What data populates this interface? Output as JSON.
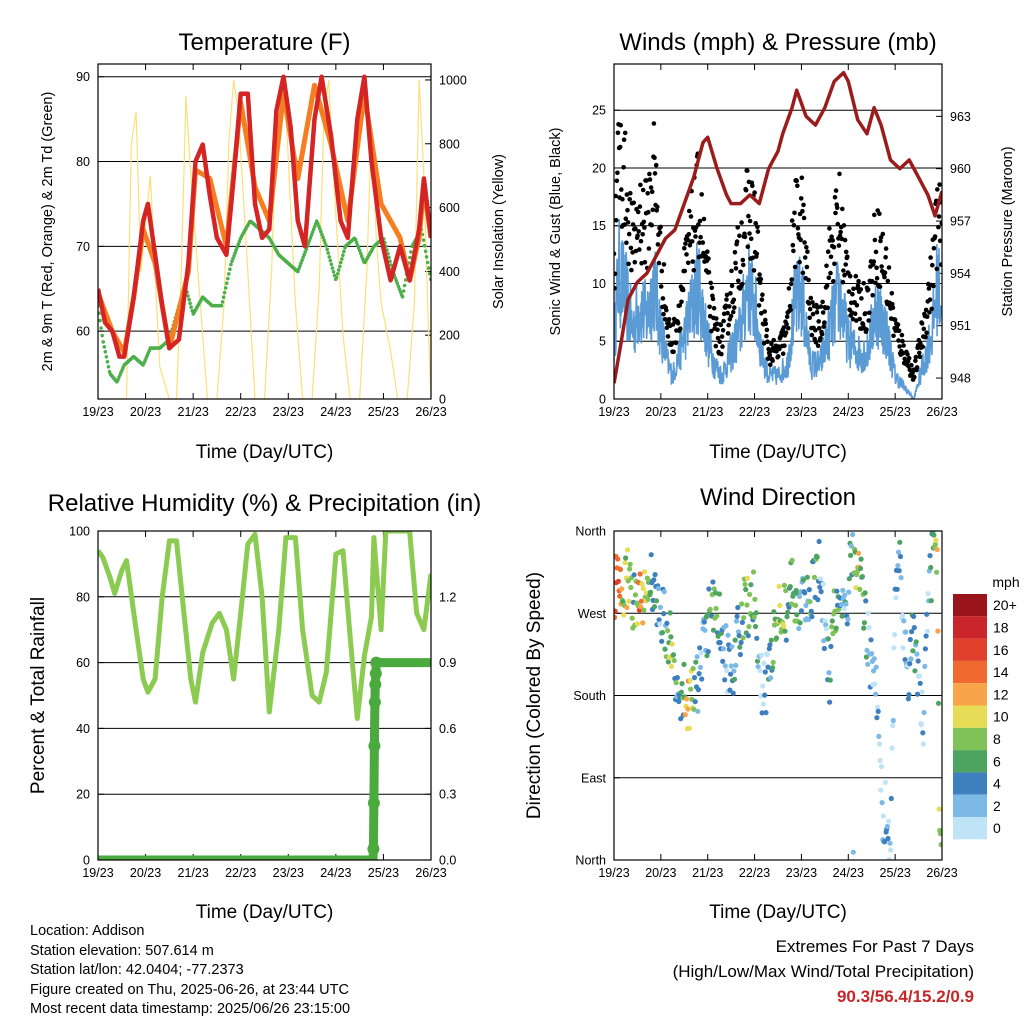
{
  "footer": {
    "location": "Location: Addison",
    "elevation": "Station elevation: 507.614 m",
    "latlon": "Station lat/lon: 42.0404; -77.2373",
    "created": "Figure created on Thu, 2025-06-26, at 23:44 UTC",
    "latest": "Most recent data timestamp: 2025/06/26 23:15:00"
  },
  "extremes": {
    "title": "Extremes For Past 7 Days",
    "subtitle": "(High/Low/Max Wind/Total Precipitation)",
    "values": "90.3/56.4/15.2/0.9"
  },
  "colors": {
    "temp2m": "#d42424",
    "temp9m": "#f57f20",
    "dewpoint": "#4daf4a",
    "solar": "#fbe07a",
    "wind": "#5b9bd5",
    "gust": "#000000",
    "pressure": "#9b1c1c",
    "rh": "#8ccb52",
    "precip": "#4aaa3e"
  },
  "chart_data": [
    {
      "type": "line",
      "title": "Temperature (F)",
      "xlabel": "Time (Day/UTC)",
      "ylabel": "2m & 9m T (Red, Orange) & 2m Td (Green)",
      "y2label": "Solar Insolation (Yellow)",
      "x_ticks": [
        "19/23",
        "20/23",
        "21/23",
        "22/23",
        "23/23",
        "24/23",
        "25/23",
        "26/23"
      ],
      "xlim": [
        0,
        7
      ],
      "ylim": [
        52,
        91.5
      ],
      "y2lim": [
        0,
        1050
      ],
      "yticks": [
        60,
        70,
        80,
        90
      ],
      "y2ticks": [
        0,
        200,
        400,
        600,
        800,
        1000
      ],
      "grid_y": [
        60,
        70,
        80,
        90
      ],
      "series": [
        {
          "name": "2m T",
          "x": [
            0,
            0.15,
            0.3,
            0.45,
            0.55,
            0.75,
            0.95,
            1.05,
            1.2,
            1.35,
            1.5,
            1.7,
            1.9,
            2.05,
            2.2,
            2.35,
            2.5,
            2.7,
            2.85,
            3.0,
            3.15,
            3.3,
            3.45,
            3.6,
            3.75,
            3.9,
            4.05,
            4.2,
            4.35,
            4.55,
            4.7,
            4.9,
            5.1,
            5.25,
            5.45,
            5.6,
            5.75,
            5.95,
            6.15,
            6.35,
            6.55,
            6.75,
            6.85,
            7.0
          ],
          "values": [
            65,
            61,
            60,
            57,
            57,
            64,
            73,
            75,
            69,
            63,
            58,
            59,
            68,
            80,
            82,
            76,
            71,
            69,
            78,
            88,
            88,
            75,
            71,
            72,
            86,
            90,
            84,
            73,
            70,
            85,
            90,
            83,
            73,
            71,
            85,
            90,
            80,
            71,
            66,
            70,
            66,
            72,
            78,
            71
          ]
        },
        {
          "name": "9m T",
          "x": [
            0,
            0.3,
            0.55,
            0.75,
            0.95,
            1.2,
            1.5,
            1.9,
            2.05,
            2.35,
            2.7,
            3.0,
            3.3,
            3.6,
            3.9,
            4.2,
            4.55,
            4.9,
            5.25,
            5.6,
            5.95,
            6.35,
            6.55,
            6.75,
            6.85,
            7.0
          ],
          "values": [
            64.5,
            60,
            57.5,
            64,
            72,
            68,
            58,
            67,
            79,
            78,
            70,
            87,
            77,
            73,
            88,
            78,
            89,
            82,
            73,
            88,
            75,
            71,
            66,
            71,
            77,
            71
          ]
        },
        {
          "name": "2m Td",
          "x": [
            0,
            0.1,
            0.25,
            0.4,
            0.55,
            0.75,
            0.95,
            1.1,
            1.3,
            1.5,
            1.7,
            1.85,
            2.0,
            2.2,
            2.4,
            2.6,
            2.8,
            3.0,
            3.2,
            3.4,
            3.6,
            3.8,
            4.0,
            4.2,
            4.4,
            4.6,
            4.8,
            5.0,
            5.2,
            5.4,
            5.6,
            5.8,
            6.0,
            6.2,
            6.4,
            6.6,
            6.8,
            7.0
          ],
          "values": [
            63,
            59,
            55,
            54,
            56,
            57,
            56,
            58,
            58,
            59,
            63,
            65,
            62,
            64,
            63,
            63,
            68,
            71,
            73,
            72,
            71,
            69,
            68,
            67,
            70,
            73,
            70,
            66,
            70,
            71,
            68,
            70,
            71,
            67,
            64,
            70,
            72,
            66
          ]
        },
        {
          "name": "Solar Insolation",
          "axis": "y2",
          "x": [
            0,
            0.6,
            0.7,
            0.8,
            0.9,
            1.1,
            1.3,
            1.5,
            1.65,
            1.75,
            1.85,
            1.95,
            2.15,
            2.3,
            2.5,
            2.65,
            2.75,
            2.85,
            2.95,
            3.15,
            3.3,
            3.5,
            3.65,
            3.75,
            3.85,
            3.95,
            4.15,
            4.3,
            4.5,
            4.65,
            4.75,
            4.85,
            4.95,
            5.15,
            5.3,
            5.5,
            5.65,
            5.75,
            5.85,
            5.95,
            6.15,
            6.3,
            6.5,
            6.65,
            6.75,
            6.85,
            6.95,
            7.0
          ],
          "values": [
            0,
            0,
            800,
            900,
            400,
            700,
            100,
            0,
            0,
            400,
            950,
            700,
            300,
            0,
            0,
            300,
            800,
            1000,
            900,
            400,
            0,
            0,
            400,
            850,
            1000,
            900,
            300,
            0,
            0,
            350,
            900,
            1000,
            700,
            200,
            0,
            0,
            400,
            850,
            500,
            300,
            150,
            0,
            0,
            300,
            1000,
            700,
            200,
            0
          ]
        }
      ]
    },
    {
      "type": "line",
      "title": "Winds (mph) & Pressure (mb)",
      "xlabel": "Time (Day/UTC)",
      "ylabel": "Sonic Wind & Gust (Blue, Black)",
      "y2label": "Station Pressure (Maroon)",
      "x_ticks": [
        "19/23",
        "20/23",
        "21/23",
        "22/23",
        "23/23",
        "24/23",
        "25/23",
        "26/23"
      ],
      "xlim": [
        0,
        7
      ],
      "ylim": [
        0,
        29
      ],
      "y2lim": [
        946.8,
        966.0
      ],
      "yticks": [
        0,
        5,
        10,
        15,
        20,
        25
      ],
      "y2ticks": [
        948,
        951,
        954,
        957,
        960,
        963
      ],
      "grid_y": [
        5,
        10,
        15,
        20,
        25
      ],
      "series": [
        {
          "name": "Pressure",
          "axis": "y2",
          "x": [
            0,
            0.15,
            0.3,
            0.5,
            0.7,
            0.9,
            1.1,
            1.3,
            1.5,
            1.7,
            1.9,
            2.0,
            2.2,
            2.4,
            2.5,
            2.7,
            2.9,
            3.1,
            3.3,
            3.5,
            3.6,
            3.8,
            3.9,
            4.1,
            4.3,
            4.5,
            4.7,
            4.9,
            5.0,
            5.2,
            5.4,
            5.55,
            5.7,
            5.9,
            6.1,
            6.3,
            6.5,
            6.7,
            6.85,
            7.0
          ],
          "values": [
            947.7,
            950,
            952.5,
            953.5,
            954,
            955,
            956,
            956.5,
            958,
            959.5,
            961.5,
            961.8,
            960,
            958.5,
            958,
            958,
            958.5,
            958,
            960,
            961,
            962,
            963.5,
            964.5,
            963,
            962.5,
            963.5,
            965,
            965.5,
            965,
            962.8,
            962,
            963.5,
            962.5,
            960.5,
            960,
            960.5,
            959.5,
            958.5,
            957.3,
            958.7
          ]
        },
        {
          "name": "Sonic Wind",
          "x": [
            0,
            0.1,
            0.25,
            0.4,
            0.55,
            0.7,
            0.85,
            1.0,
            1.15,
            1.25,
            1.4,
            1.6,
            1.8,
            2.0,
            2.15,
            2.3,
            2.5,
            2.7,
            2.85,
            3.0,
            3.15,
            3.3,
            3.5,
            3.7,
            3.85,
            4.0,
            4.2,
            4.4,
            4.6,
            4.8,
            5.0,
            5.2,
            5.4,
            5.6,
            5.8,
            6.0,
            6.2,
            6.4,
            6.6,
            6.8,
            6.9,
            7.0
          ],
          "values": [
            5,
            11,
            9,
            6,
            8,
            7,
            10,
            6,
            3,
            2,
            4,
            7,
            10,
            5,
            3,
            2,
            4,
            6,
            10,
            8,
            4,
            2,
            2,
            3,
            8,
            9,
            3,
            3,
            6,
            9,
            5,
            4,
            4,
            8,
            6,
            2,
            1,
            0,
            3,
            6,
            10,
            8
          ]
        },
        {
          "name": "Gust",
          "x": [
            0,
            0.1,
            0.25,
            0.4,
            0.55,
            0.7,
            0.85,
            1.0,
            1.15,
            1.25,
            1.4,
            1.6,
            1.8,
            2.0,
            2.15,
            2.3,
            2.5,
            2.7,
            2.85,
            3.0,
            3.15,
            3.3,
            3.5,
            3.7,
            3.85,
            4.0,
            4.2,
            4.4,
            4.6,
            4.8,
            5.0,
            5.2,
            5.4,
            5.6,
            5.8,
            6.0,
            6.2,
            6.4,
            6.6,
            6.8,
            6.9,
            7.0
          ],
          "values": [
            11,
            21,
            18,
            13,
            16,
            15,
            20,
            12,
            6,
            5,
            8,
            13,
            17,
            10,
            6,
            5,
            9,
            13,
            16,
            15,
            8,
            4,
            4,
            6,
            15,
            16,
            7,
            6,
            12,
            16,
            10,
            8,
            8,
            14,
            11,
            6,
            4,
            2,
            6,
            11,
            16,
            13
          ]
        }
      ]
    },
    {
      "type": "line",
      "title": "Relative Humidity (%) & Precipitation (in)",
      "xlabel": "Time (Day/UTC)",
      "ylabel": "Percent & Total Rainfall",
      "x_ticks": [
        "19/23",
        "20/23",
        "21/23",
        "22/23",
        "23/23",
        "24/23",
        "25/23",
        "26/23"
      ],
      "xlim": [
        0,
        7
      ],
      "ylim": [
        0,
        100
      ],
      "y2lim": [
        0,
        1.5
      ],
      "yticks": [
        0,
        20,
        40,
        60,
        80,
        100
      ],
      "y2ticks": [
        0.0,
        0.3,
        0.6,
        0.9,
        1.2
      ],
      "grid_y": [
        20,
        40,
        60,
        80
      ],
      "series": [
        {
          "name": "Relative Humidity",
          "x": [
            0,
            0.1,
            0.25,
            0.35,
            0.5,
            0.6,
            0.8,
            0.95,
            1.05,
            1.2,
            1.35,
            1.5,
            1.65,
            1.8,
            1.95,
            2.05,
            2.2,
            2.4,
            2.55,
            2.7,
            2.85,
            3.0,
            3.15,
            3.3,
            3.45,
            3.6,
            3.8,
            3.95,
            4.15,
            4.3,
            4.5,
            4.65,
            4.8,
            5.0,
            5.15,
            5.3,
            5.45,
            5.6,
            5.75,
            5.8,
            5.95,
            6.05,
            6.2,
            6.4,
            6.55,
            6.7,
            6.85,
            7.0
          ],
          "values": [
            94,
            92,
            86,
            81,
            88,
            91,
            70,
            55,
            51,
            55,
            80,
            97,
            97,
            76,
            55,
            48,
            63,
            72,
            75,
            70,
            55,
            75,
            96,
            99,
            80,
            45,
            70,
            98,
            98,
            70,
            50,
            48,
            57,
            93,
            94,
            68,
            43,
            62,
            74,
            98,
            70,
            100,
            100,
            100,
            100,
            75,
            70,
            87
          ]
        },
        {
          "name": "Total Rainfall",
          "axis": "y2",
          "x": [
            0,
            5.78,
            5.79,
            5.8,
            5.81,
            5.82,
            5.83,
            5.84,
            5.85,
            6.0,
            6.5,
            7.0
          ],
          "values": [
            0.0,
            0.0,
            0.05,
            0.26,
            0.52,
            0.72,
            0.8,
            0.85,
            0.9,
            0.9,
            0.9,
            0.9
          ]
        }
      ]
    },
    {
      "type": "scatter",
      "title": "Wind Direction",
      "xlabel": "Time (Day/UTC)",
      "ylabel": "Direction (Colored By Speed)",
      "x_ticks": [
        "19/23",
        "20/23",
        "21/23",
        "22/23",
        "23/23",
        "24/23",
        "25/23",
        "26/23"
      ],
      "xlim": [
        0,
        7
      ],
      "ylim": [
        0,
        360
      ],
      "y_tick_labels": [
        "North",
        "East",
        "South",
        "West",
        "North"
      ],
      "yticks": [
        0,
        90,
        180,
        270,
        360
      ],
      "grid_y": [
        90,
        180,
        270,
        360
      ],
      "legend": {
        "title": "mph",
        "position": "right",
        "labels": [
          "20+",
          "18",
          "16",
          "14",
          "12",
          "10",
          "8",
          "6",
          "4",
          "2",
          "0"
        ],
        "colors": [
          "#99151b",
          "#c9252b",
          "#e0402c",
          "#f06a30",
          "#f8a448",
          "#e6dc55",
          "#7fc257",
          "#4ca45f",
          "#3e80be",
          "#7db9e6",
          "#bfe3f7"
        ]
      },
      "x": [
        0.05,
        0.12,
        0.2,
        0.28,
        0.35,
        0.45,
        0.55,
        0.62,
        0.7,
        0.8,
        0.9,
        1.0,
        1.1,
        1.2,
        1.3,
        1.4,
        1.5,
        1.6,
        1.7,
        1.8,
        1.9,
        2.0,
        2.1,
        2.2,
        2.3,
        2.4,
        2.5,
        2.6,
        2.7,
        2.8,
        2.9,
        3.0,
        3.1,
        3.2,
        3.3,
        3.4,
        3.5,
        3.6,
        3.7,
        3.8,
        3.9,
        4.0,
        4.1,
        4.2,
        4.3,
        4.4,
        4.5,
        4.6,
        4.7,
        4.8,
        4.9,
        5.0,
        5.1,
        5.2,
        5.3,
        5.4,
        5.5,
        5.6,
        5.7,
        5.75,
        5.8,
        5.85,
        5.9,
        6.0,
        6.1,
        6.2,
        6.3,
        6.4,
        6.5,
        6.6,
        6.7,
        6.8,
        6.9,
        6.95
      ],
      "directions": [
        300,
        290,
        285,
        310,
        295,
        280,
        300,
        290,
        310,
        305,
        280,
        275,
        260,
        240,
        210,
        190,
        185,
        175,
        180,
        200,
        230,
        260,
        270,
        275,
        250,
        220,
        200,
        230,
        260,
        280,
        270,
        290,
        200,
        180,
        210,
        250,
        290,
        280,
        270,
        300,
        290,
        280,
        270,
        290,
        300,
        320,
        250,
        200,
        280,
        300,
        270,
        290,
        350,
        320,
        290,
        250,
        210,
        190,
        100,
        30,
        60,
        20,
        10,
        300,
        340,
        230,
        200,
        250,
        180,
        150,
        280,
        330,
        350,
        5
      ],
      "speeds": [
        16,
        12,
        8,
        10,
        9,
        6,
        14,
        10,
        8,
        6,
        4,
        3,
        4,
        8,
        6,
        3,
        8,
        11,
        6,
        2,
        3,
        4,
        7,
        6,
        3,
        2,
        3,
        4,
        5,
        8,
        6,
        7,
        2,
        2,
        3,
        6,
        9,
        8,
        5,
        8,
        6,
        3,
        4,
        6,
        5,
        3,
        2,
        4,
        9,
        5,
        3,
        4,
        4,
        11,
        6,
        3,
        1,
        2,
        0,
        3,
        2,
        1,
        1,
        2,
        4,
        1,
        2,
        6,
        3,
        1,
        2,
        6,
        10,
        8
      ]
    }
  ]
}
